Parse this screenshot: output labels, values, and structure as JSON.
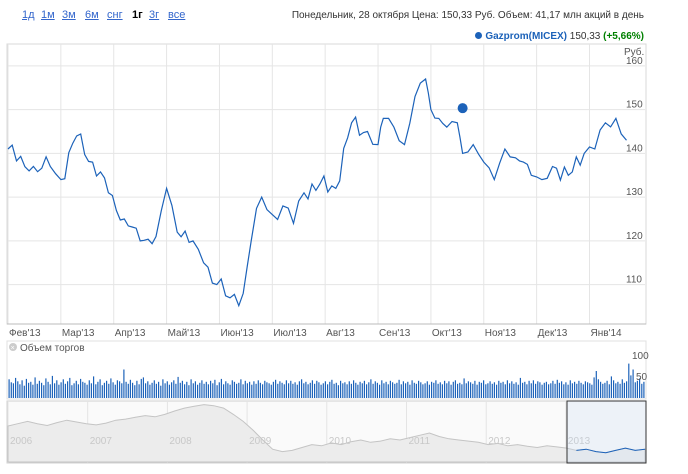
{
  "range_buttons": [
    "1д",
    "1м",
    "3м",
    "6м",
    "снг",
    "1г",
    "3г",
    "все"
  ],
  "active_range": "1г",
  "info_text": "Понедельник, 28 октября Цена: 150,33 Руб. Объем: 41,17 млн акций в день",
  "legend": {
    "name": "Gazprom(MICEX)",
    "price": "150,33",
    "change": "(+5,66%)",
    "color": "#1c62b9"
  },
  "volume_label": "Объем торгов",
  "colors": {
    "line": "#1c62b9",
    "volume": "#1c62b9",
    "grid": "#e5e5e5",
    "change_positive": "#008000"
  },
  "chart_data": {
    "type": "line",
    "y_unit": "Руб.",
    "y_ticks": [
      110,
      120,
      130,
      140,
      150,
      160
    ],
    "ylim": [
      101,
      165
    ],
    "x_labels": [
      "Фев'13",
      "Мар'13",
      "Апр'13",
      "Май'13",
      "Июн'13",
      "Июл'13",
      "Авг'13",
      "Сен'13",
      "Окт'13",
      "Ноя'13",
      "Дек'13",
      "Янв'14"
    ],
    "series": [
      {
        "name": "Gazprom(MICEX)",
        "x_months": [
          0,
          0.4,
          0.8,
          1.0,
          1.3,
          1.6,
          1.9,
          2.2,
          2.5,
          2.8,
          3.0,
          3.2,
          3.5,
          3.7,
          3.95,
          4.2,
          4.45,
          4.6,
          4.8,
          5.0,
          5.2,
          5.4,
          5.6,
          5.9,
          6.2,
          6.5,
          6.8,
          7.0,
          7.1,
          7.3,
          7.5,
          7.7,
          7.9,
          8.0,
          8.15,
          8.3,
          8.5,
          8.6,
          8.8,
          9.0,
          9.2,
          9.4,
          9.6,
          9.75,
          9.9,
          10.1,
          10.3,
          10.6,
          10.9,
          11.1,
          11.3,
          11.5,
          11.7
        ],
        "values": [
          141,
          136,
          137,
          134,
          144,
          138,
          131,
          125,
          120,
          121,
          132,
          122,
          120,
          115,
          110,
          107,
          108,
          120,
          130,
          126,
          128,
          124,
          131,
          133,
          132,
          147,
          145,
          142,
          148,
          146,
          142,
          153,
          157,
          150,
          148,
          146,
          147,
          140,
          142,
          138,
          134,
          141,
          139,
          138,
          135,
          134,
          137,
          135,
          140,
          141,
          147,
          148,
          143
        ]
      }
    ],
    "current_point": {
      "x_month": 8.6,
      "value": 150.33
    },
    "volume": {
      "axis_labels": [
        "100",
        "50"
      ],
      "values_millions": [
        38,
        32,
        30,
        41,
        34,
        28,
        36,
        25,
        39,
        31,
        33,
        27,
        42,
        29,
        35,
        31,
        26,
        40,
        33,
        28,
        45,
        30,
        36,
        27,
        32,
        38,
        29,
        34,
        41,
        26,
        30,
        35,
        28,
        39,
        33,
        31,
        27,
        36,
        30,
        44,
        28,
        33,
        38,
        26,
        31,
        35,
        29,
        40,
        32,
        27,
        36,
        34,
        30,
        58,
        33,
        29,
        37,
        31,
        26,
        35,
        28,
        39,
        42,
        30,
        34,
        27,
        31,
        36,
        29,
        33,
        25,
        38,
        30,
        34,
        27,
        32,
        36,
        29,
        43,
        31,
        35,
        28,
        33,
        26,
        38,
        30,
        34,
        27,
        31,
        36,
        29,
        33,
        28,
        35,
        30,
        37,
        26,
        32,
        39,
        28,
        34,
        30,
        27,
        36,
        33,
        29,
        31,
        38,
        28,
        35,
        30,
        33,
        27,
        34,
        29,
        36,
        31,
        28,
        35,
        32,
        30,
        27,
        33,
        37,
        29,
        34,
        31,
        28,
        36,
        30,
        35,
        29,
        32,
        27,
        34,
        38,
        30,
        33,
        28,
        31,
        36,
        29,
        35,
        32,
        27,
        30,
        34,
        28,
        33,
        37,
        29,
        31,
        26,
        35,
        30,
        32,
        28,
        34,
        29,
        36,
        31,
        27,
        33,
        30,
        35,
        28,
        32,
        38,
        29,
        34,
        31,
        27,
        36,
        30,
        33,
        28,
        35,
        32,
        29,
        31,
        37,
        28,
        34,
        30,
        33,
        27,
        36,
        31,
        29,
        35,
        32,
        28,
        30,
        34,
        27,
        33,
        31,
        36,
        29,
        32,
        28,
        35,
        30,
        34,
        27,
        33,
        36,
        29,
        31,
        28,
        40,
        30,
        34,
        32,
        29,
        35,
        27,
        33,
        31,
        36,
        28,
        30,
        34,
        29,
        32,
        27,
        35,
        31,
        33,
        28,
        36,
        30,
        34,
        29,
        32,
        27,
        41,
        31,
        33,
        28,
        35,
        30,
        36,
        29,
        34,
        32,
        27,
        31,
        33,
        28,
        30,
        35,
        29,
        37,
        31,
        34,
        28,
        32,
        27,
        36,
        30,
        33,
        29,
        35,
        31,
        28,
        34,
        32,
        30,
        27,
        42,
        55,
        38,
        33,
        29,
        31,
        35,
        28,
        44,
        36,
        30,
        33,
        29,
        38,
        31,
        34,
        70,
        46,
        58,
        32,
        35,
        40,
        29,
        33
      ]
    },
    "navigator": {
      "year_labels": [
        "2006",
        "2007",
        "2008",
        "2009",
        "2010",
        "2011",
        "2012",
        "2013"
      ],
      "values": [
        0.62,
        0.66,
        0.7,
        0.66,
        0.63,
        0.68,
        0.72,
        0.69,
        0.66,
        0.64,
        0.67,
        0.72,
        0.74,
        0.77,
        0.8,
        0.78,
        0.82,
        0.88,
        0.93,
        0.96,
        0.99,
        0.97,
        0.93,
        0.82,
        0.7,
        0.55,
        0.38,
        0.22,
        0.18,
        0.2,
        0.25,
        0.3,
        0.28,
        0.33,
        0.3,
        0.35,
        0.38,
        0.34,
        0.36,
        0.4,
        0.38,
        0.42,
        0.46,
        0.5,
        0.44,
        0.4,
        0.38,
        0.36,
        0.34,
        0.3,
        0.32,
        0.28,
        0.3,
        0.27,
        0.25,
        0.28,
        0.26,
        0.24,
        0.2,
        0.22,
        0.18,
        0.16,
        0.2,
        0.24,
        0.2,
        0.22
      ]
    }
  }
}
